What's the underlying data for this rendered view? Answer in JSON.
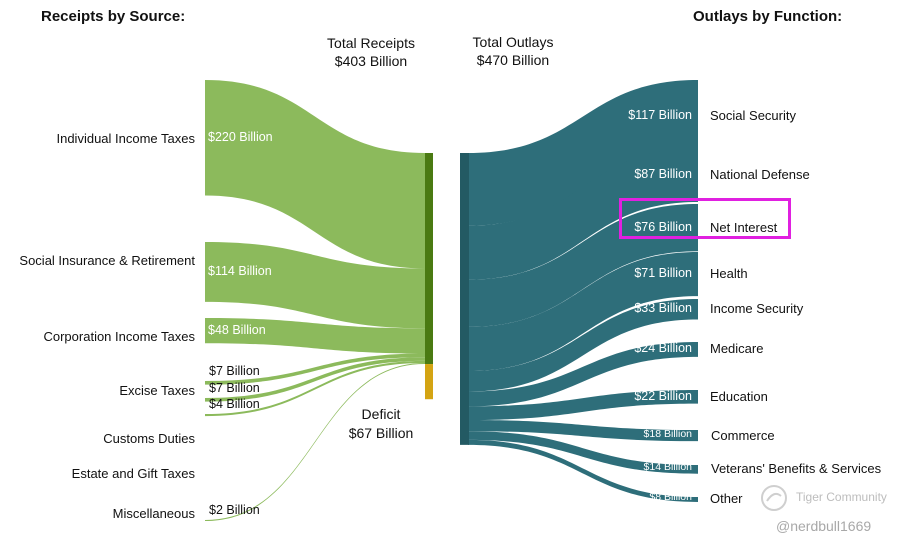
{
  "chart_data": {
    "type": "sankey",
    "left_heading": "Receipts by Source:",
    "right_heading": "Outlays by Function:",
    "total_receipts": {
      "line1": "Total Receipts",
      "line2": "$403 Billion",
      "value": 403
    },
    "total_outlays": {
      "line1": "Total Outlays",
      "line2": "$470 Billion",
      "value": 470
    },
    "deficit": {
      "line1": "Deficit",
      "line2": "$67 Billion",
      "value": 67
    },
    "receipts": [
      {
        "name": "Individual Income Taxes",
        "value": 220,
        "label": "$220 Billion"
      },
      {
        "name": "Social Insurance & Retirement",
        "value": 114,
        "label": "$114 Billion"
      },
      {
        "name": "Corporation Income Taxes",
        "value": 48,
        "label": "$48 Billion"
      },
      {
        "name": "Excise Taxes",
        "value": 7,
        "label": "$7 Billion"
      },
      {
        "name": "Customs Duties",
        "value": 7,
        "label": "$7 Billion"
      },
      {
        "name": "Estate and Gift Taxes",
        "value": 4,
        "label": "$4 Billion"
      },
      {
        "name": "Miscellaneous",
        "value": 2,
        "label": "$2 Billion"
      }
    ],
    "outlays": [
      {
        "name": "Social Security",
        "value": 117,
        "label": "$117 Billion"
      },
      {
        "name": "National Defense",
        "value": 87,
        "label": "$87 Billion"
      },
      {
        "name": "Net Interest",
        "value": 76,
        "label": "$76 Billion",
        "highlighted": true
      },
      {
        "name": "Health",
        "value": 71,
        "label": "$71 Billion"
      },
      {
        "name": "Income Security",
        "value": 33,
        "label": "$33 Billion"
      },
      {
        "name": "Medicare",
        "value": 24,
        "label": "$24 Billion"
      },
      {
        "name": "Education",
        "value": 22,
        "label": "$22 Billion"
      },
      {
        "name": "Commerce",
        "value": 18,
        "label": "$18 Billion"
      },
      {
        "name": "Veterans' Benefits & Services",
        "value": 14,
        "label": "$14 Billion"
      },
      {
        "name": "Other",
        "value": 8,
        "label": "$8 Billion"
      }
    ]
  },
  "colors": {
    "receipt_flow": "#8cba5c",
    "receipt_bar": "#4a7a12",
    "deficit_bar": "#d4a413",
    "outlay_flow": "#2e6e7a",
    "outlay_bar": "#235a63",
    "highlight": "#e020e0"
  },
  "watermark": {
    "brand": "Tiger Community",
    "handle": "@nerdbull1669"
  }
}
